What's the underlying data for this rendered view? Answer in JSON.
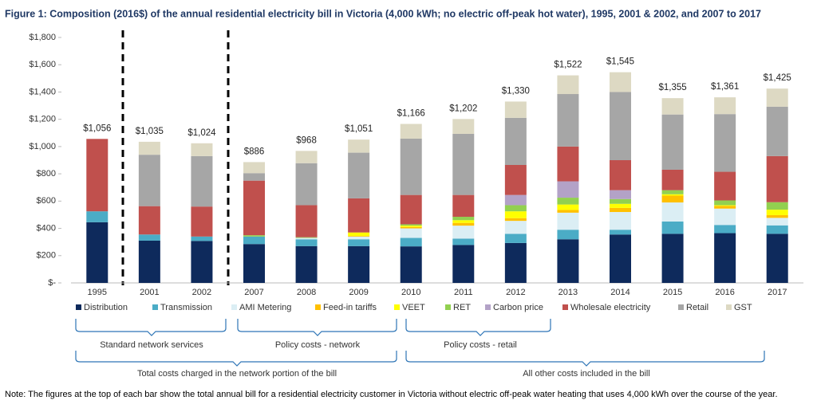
{
  "chart_data": {
    "type": "stacked_bar",
    "title": "Figure 1: Composition (2016$) of the annual residential electricity bill in Victoria (4,000 kWh; no electric off-peak hot water), 1995, 2001 & 2002, and 2007 to 2017",
    "note": "Note: The figures at the top of each bar show the total annual bill for a residential electricity customer in Victoria without electric off-peak water heating that uses 4,000 kWh over the course of the year.",
    "categories": [
      "1995",
      "2001",
      "2002",
      "2007",
      "2008",
      "2009",
      "2010",
      "2011",
      "2012",
      "2013",
      "2014",
      "2015",
      "2016",
      "2017"
    ],
    "series": [
      {
        "name": "Distribution",
        "color": "#0e2a5c",
        "values": [
          445,
          310,
          308,
          285,
          270,
          270,
          268,
          278,
          293,
          320,
          355,
          360,
          365,
          360
        ]
      },
      {
        "name": "Transmission",
        "color": "#4bacc6",
        "values": [
          80,
          45,
          32,
          55,
          50,
          50,
          62,
          47,
          67,
          70,
          35,
          90,
          60,
          62
        ]
      },
      {
        "name": "AMI Metering",
        "color": "#dbeef4",
        "values": [
          0,
          0,
          0,
          0,
          10,
          20,
          70,
          95,
          95,
          125,
          130,
          140,
          120,
          55
        ]
      },
      {
        "name": "Feed-in tariffs",
        "color": "#ffc000",
        "values": [
          0,
          0,
          0,
          0,
          0,
          5,
          10,
          20,
          20,
          20,
          30,
          50,
          20,
          20
        ]
      },
      {
        "name": "VEET",
        "color": "#ffff00",
        "values": [
          0,
          0,
          0,
          0,
          0,
          25,
          10,
          20,
          50,
          40,
          30,
          10,
          5,
          40
        ]
      },
      {
        "name": "RET",
        "color": "#92d050",
        "values": [
          0,
          0,
          0,
          10,
          5,
          0,
          10,
          25,
          45,
          50,
          35,
          30,
          35,
          55
        ]
      },
      {
        "name": "Carbon price",
        "color": "#b3a2c7",
        "values": [
          0,
          0,
          0,
          0,
          0,
          0,
          0,
          0,
          75,
          120,
          65,
          0,
          0,
          0
        ]
      },
      {
        "name": "Wholesale electricity",
        "color": "#c0504d",
        "values": [
          531,
          208,
          220,
          400,
          235,
          250,
          215,
          160,
          220,
          255,
          220,
          150,
          210,
          338
        ]
      },
      {
        "name": "Retail",
        "color": "#a6a6a6",
        "values": [
          0,
          377,
          370,
          55,
          308,
          335,
          413,
          448,
          345,
          385,
          500,
          405,
          423,
          362
        ]
      },
      {
        "name": "GST",
        "color": "#ddd9c3",
        "values": [
          0,
          95,
          94,
          81,
          90,
          96,
          108,
          109,
          120,
          137,
          145,
          120,
          123,
          133
        ]
      }
    ],
    "totals": {
      "values": [
        1056,
        1035,
        1024,
        886,
        968,
        1051,
        1166,
        1202,
        1330,
        1522,
        1545,
        1355,
        1361,
        1425
      ],
      "value_labels": [
        "$1,056",
        "$1,035",
        "$1,024",
        "$886",
        "$968",
        "$1,051",
        "$1,166",
        "$1,202",
        "$1,330",
        "$1,522",
        "$1,545",
        "$1,355",
        "$1,361",
        "$1,425"
      ]
    },
    "ylim": [
      0,
      1800
    ],
    "yticks": [
      {
        "value": 0,
        "label": "$-"
      },
      {
        "value": 200,
        "label": "$200"
      },
      {
        "value": 400,
        "label": "$400"
      },
      {
        "value": 600,
        "label": "$600"
      },
      {
        "value": 800,
        "label": "$800"
      },
      {
        "value": 1000,
        "label": "$1,000"
      },
      {
        "value": 1200,
        "label": "$1,200"
      },
      {
        "value": 1400,
        "label": "$1,400"
      },
      {
        "value": 1600,
        "label": "$1,600"
      },
      {
        "value": 1800,
        "label": "$1,800"
      }
    ],
    "grid": false,
    "legend": "bottom",
    "annotations": [
      "Standard network services",
      "Policy costs - network",
      "Policy costs - retail",
      "Total costs charged in the network portion of the bill",
      "All other costs included in the bill"
    ]
  }
}
